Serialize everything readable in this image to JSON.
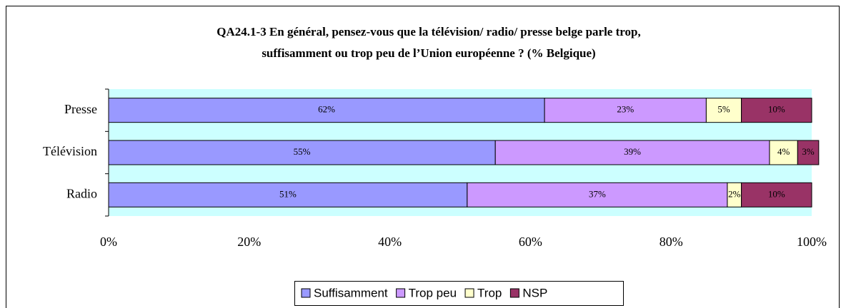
{
  "chart_data": {
    "type": "stacked_barh",
    "title": "QA24.1-3 En général, pensez-vous que la télévision/ radio/ presse belge parle trop,",
    "subtitle": "suffisamment ou trop peu de l’Union européenne ? (% Belgique)",
    "categories": [
      "Presse",
      "Télévision",
      "Radio"
    ],
    "series": [
      {
        "name": "Suffisamment",
        "color": "#9999ff",
        "values": [
          62,
          55,
          51
        ],
        "value_labels": [
          "62%",
          "55%",
          "51%"
        ]
      },
      {
        "name": "Trop peu",
        "color": "#cc99ff",
        "values": [
          23,
          39,
          37
        ],
        "value_labels": [
          "23%",
          "39%",
          "37%"
        ]
      },
      {
        "name": "Trop",
        "color": "#ffffcc",
        "values": [
          5,
          4,
          2
        ],
        "value_labels": [
          "5%",
          "4%",
          "2%"
        ]
      },
      {
        "name": "NSP",
        "color": "#993366",
        "values": [
          10,
          3,
          10
        ],
        "value_labels": [
          "10%",
          "3%",
          "10%"
        ]
      }
    ],
    "xlim": [
      0,
      100
    ],
    "xticks": [
      {
        "value": 0,
        "label": "0%"
      },
      {
        "value": 20,
        "label": "20%"
      },
      {
        "value": 40,
        "label": "40%"
      },
      {
        "value": 60,
        "label": "60%"
      },
      {
        "value": 80,
        "label": "80%"
      },
      {
        "value": 100,
        "label": "100%"
      }
    ],
    "plot_background": "#ccffff",
    "legend": "bottom"
  }
}
